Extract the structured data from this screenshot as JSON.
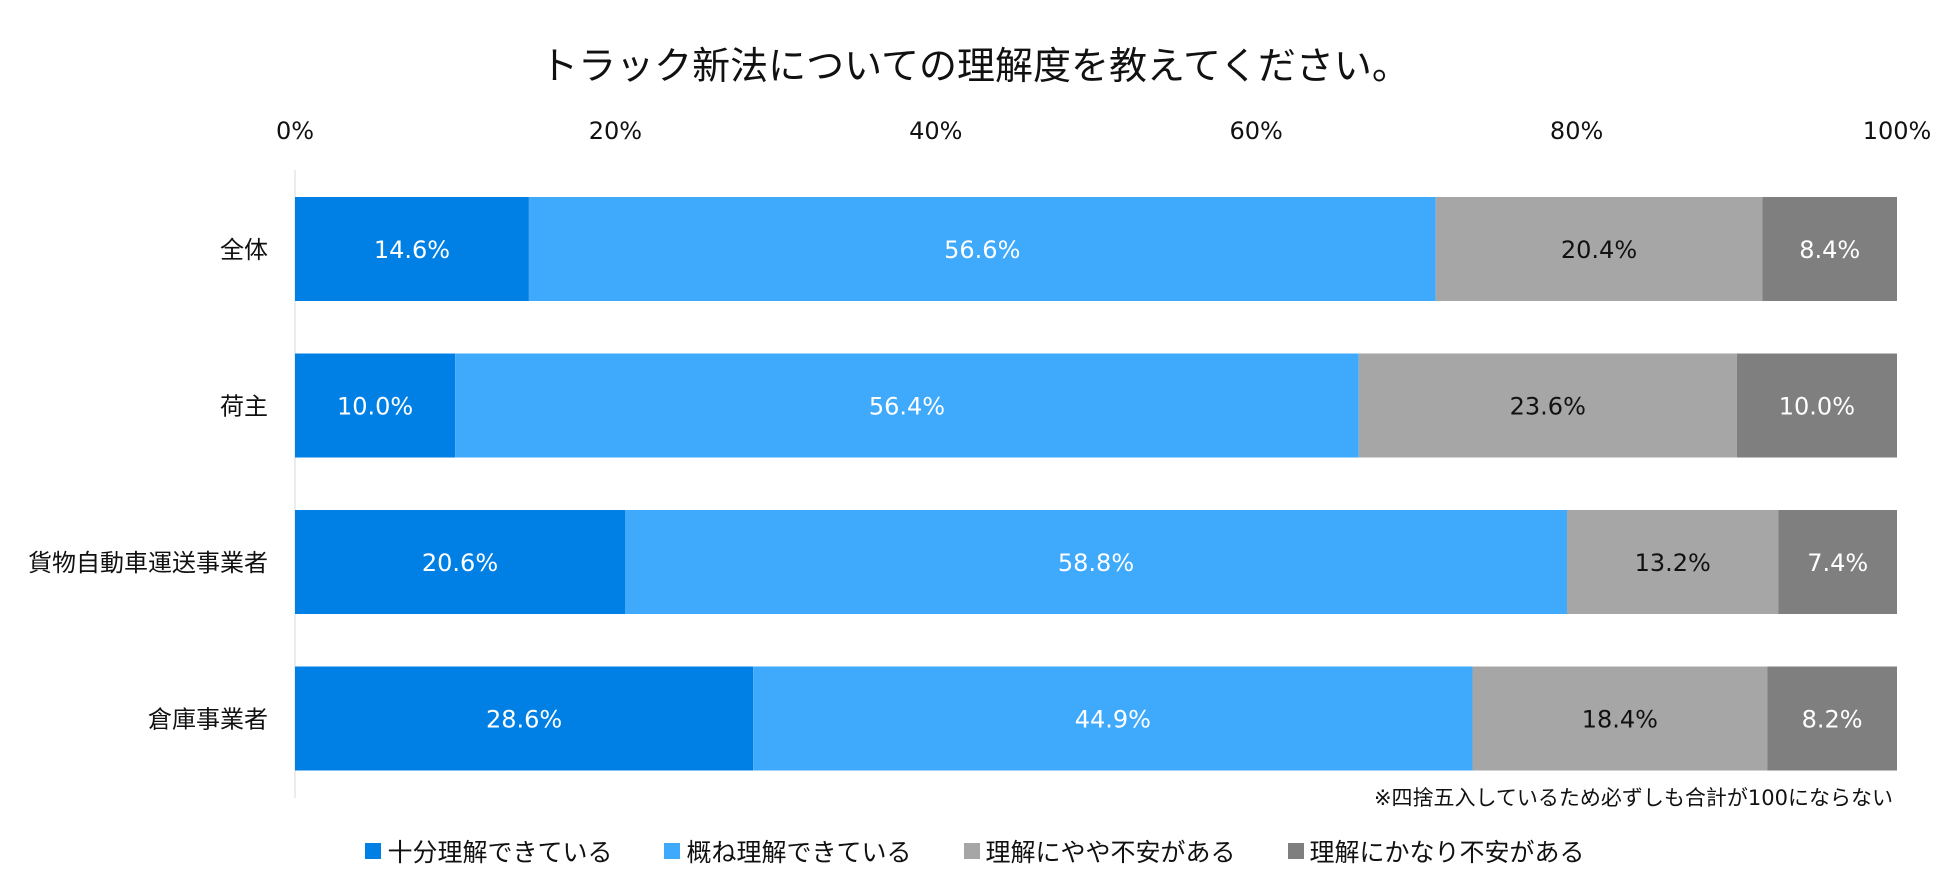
{
  "chart_data": {
    "type": "bar",
    "orientation": "horizontal",
    "stacked": true,
    "title": "トラック新法についての理解度を教えてください。",
    "categories": [
      "全体",
      "荷主",
      "貨物自動車運送事業者",
      "倉庫事業者"
    ],
    "xlim": [
      0,
      100
    ],
    "x_ticks": [
      "0%",
      "20%",
      "40%",
      "60%",
      "80%",
      "100%"
    ],
    "x_axis_position": "top",
    "grid": false,
    "legend_position": "bottom",
    "series": [
      {
        "name": "十分理解できている",
        "color": "#0080E4",
        "label_color": "#FFFFFF",
        "values": [
          14.6,
          10.0,
          20.6,
          28.6
        ]
      },
      {
        "name": "概ね理解できている",
        "color": "#3FA9FC",
        "label_color": "#FFFFFF",
        "values": [
          56.6,
          56.4,
          58.8,
          44.9
        ]
      },
      {
        "name": "理解にやや不安がある",
        "color": "#A6A6A6",
        "label_color": "#111111",
        "values": [
          20.4,
          23.6,
          13.2,
          18.4
        ]
      },
      {
        "name": "理解にかなり不安がある",
        "color": "#7F7F7F",
        "label_color": "#FFFFFF",
        "values": [
          8.4,
          10.0,
          7.4,
          8.2
        ]
      }
    ],
    "note": "※四捨五入しているため必ずしも合計が100にならない"
  }
}
